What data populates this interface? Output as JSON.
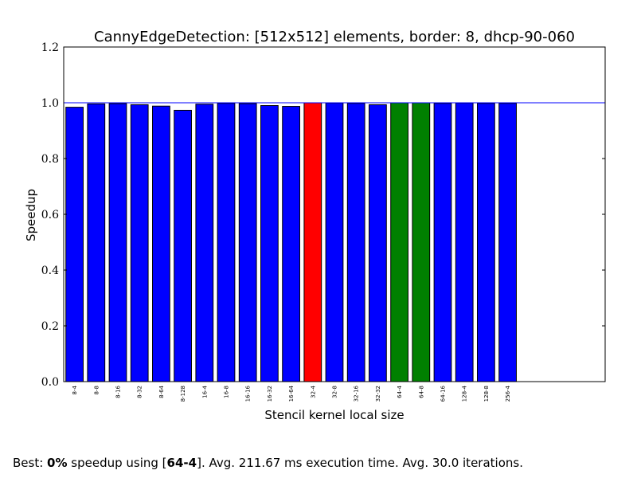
{
  "chart_data": {
    "type": "bar",
    "title": "CannyEdgeDetection: [512x512] elements, border: 8, dhcp-90-060",
    "xlabel": "Stencil kernel local size",
    "ylabel": "Speedup",
    "ylim": [
      0,
      1.2
    ],
    "yticks": [
      "0.0",
      "0.2",
      "0.4",
      "0.6",
      "0.8",
      "1.0",
      "1.2"
    ],
    "xlim": [
      0,
      25
    ],
    "reference_line": 1.0,
    "grid": false,
    "categories": [
      "8-4",
      "8-8",
      "8-16",
      "8-32",
      "8-64",
      "8-128",
      "16-4",
      "16-8",
      "16-16",
      "16-32",
      "16-64",
      "32-4",
      "32-8",
      "32-16",
      "32-32",
      "64-4",
      "64-8",
      "64-16",
      "128-4",
      "128-8",
      "256-4"
    ],
    "values": [
      0.984,
      0.996,
      0.997,
      0.993,
      0.988,
      0.973,
      0.995,
      0.998,
      0.997,
      0.99,
      0.987,
      1.0,
      0.999,
      0.998,
      0.993,
      1.0,
      1.0,
      0.998,
      0.999,
      0.998,
      0.998
    ],
    "colors": {
      "default": "#0000ff",
      "baseline": "#ff0000",
      "best": "#008000",
      "reference_line": "#0000ff"
    },
    "highlight": {
      "baseline": [
        "32-4"
      ],
      "best": [
        "64-4",
        "64-8"
      ]
    }
  },
  "summary": {
    "prefix": "Best: ",
    "speedup": "0%",
    "middle": " speedup using [",
    "config": "64-4",
    "suffix": "]. Avg. 211.67 ms execution time. Avg. 30.0 iterations."
  }
}
